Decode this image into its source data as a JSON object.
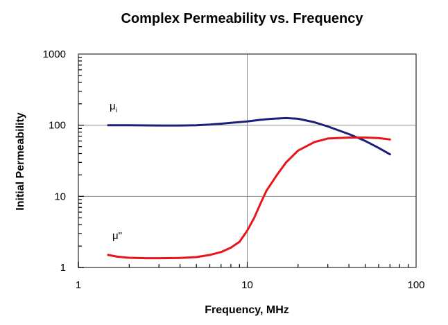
{
  "chart_data": {
    "type": "line",
    "title": "Complex Permeability vs. Frequency",
    "xlabel": "Frequency, MHz",
    "ylabel": "Initial Permeability",
    "xscale": "log",
    "yscale": "log",
    "xlim": [
      1,
      100
    ],
    "ylim": [
      1,
      1000
    ],
    "xticks": [
      "1",
      "10",
      "100"
    ],
    "yticks": [
      "1",
      "10",
      "100",
      "1000"
    ],
    "grid": true,
    "series": [
      {
        "name": "μi",
        "color": "#1c1f7a",
        "x": [
          1.5,
          2,
          3,
          4,
          5,
          6,
          7,
          8,
          10,
          12,
          14,
          17,
          20,
          25,
          30,
          40,
          50,
          60,
          70
        ],
        "y": [
          100,
          100,
          99,
          99,
          100,
          102,
          105,
          108,
          113,
          119,
          123,
          126,
          123,
          110,
          96,
          75,
          60,
          48,
          39
        ]
      },
      {
        "name": "μ\"",
        "color": "#e8141b",
        "x": [
          1.5,
          1.7,
          2,
          2.5,
          3,
          4,
          5,
          6,
          7,
          8,
          9,
          10,
          11,
          12,
          13,
          15,
          17,
          20,
          25,
          30,
          40,
          50,
          60,
          70
        ],
        "y": [
          1.5,
          1.42,
          1.37,
          1.35,
          1.35,
          1.36,
          1.4,
          1.5,
          1.65,
          1.9,
          2.3,
          3.3,
          5.0,
          8.0,
          12.0,
          20.0,
          30.0,
          44.0,
          58.0,
          65.0,
          67.0,
          67.0,
          66.0,
          63.0
        ]
      }
    ]
  },
  "labels": {
    "mu_i_main": "μ",
    "mu_i_sub": "i",
    "mu_pp": "μ\""
  }
}
